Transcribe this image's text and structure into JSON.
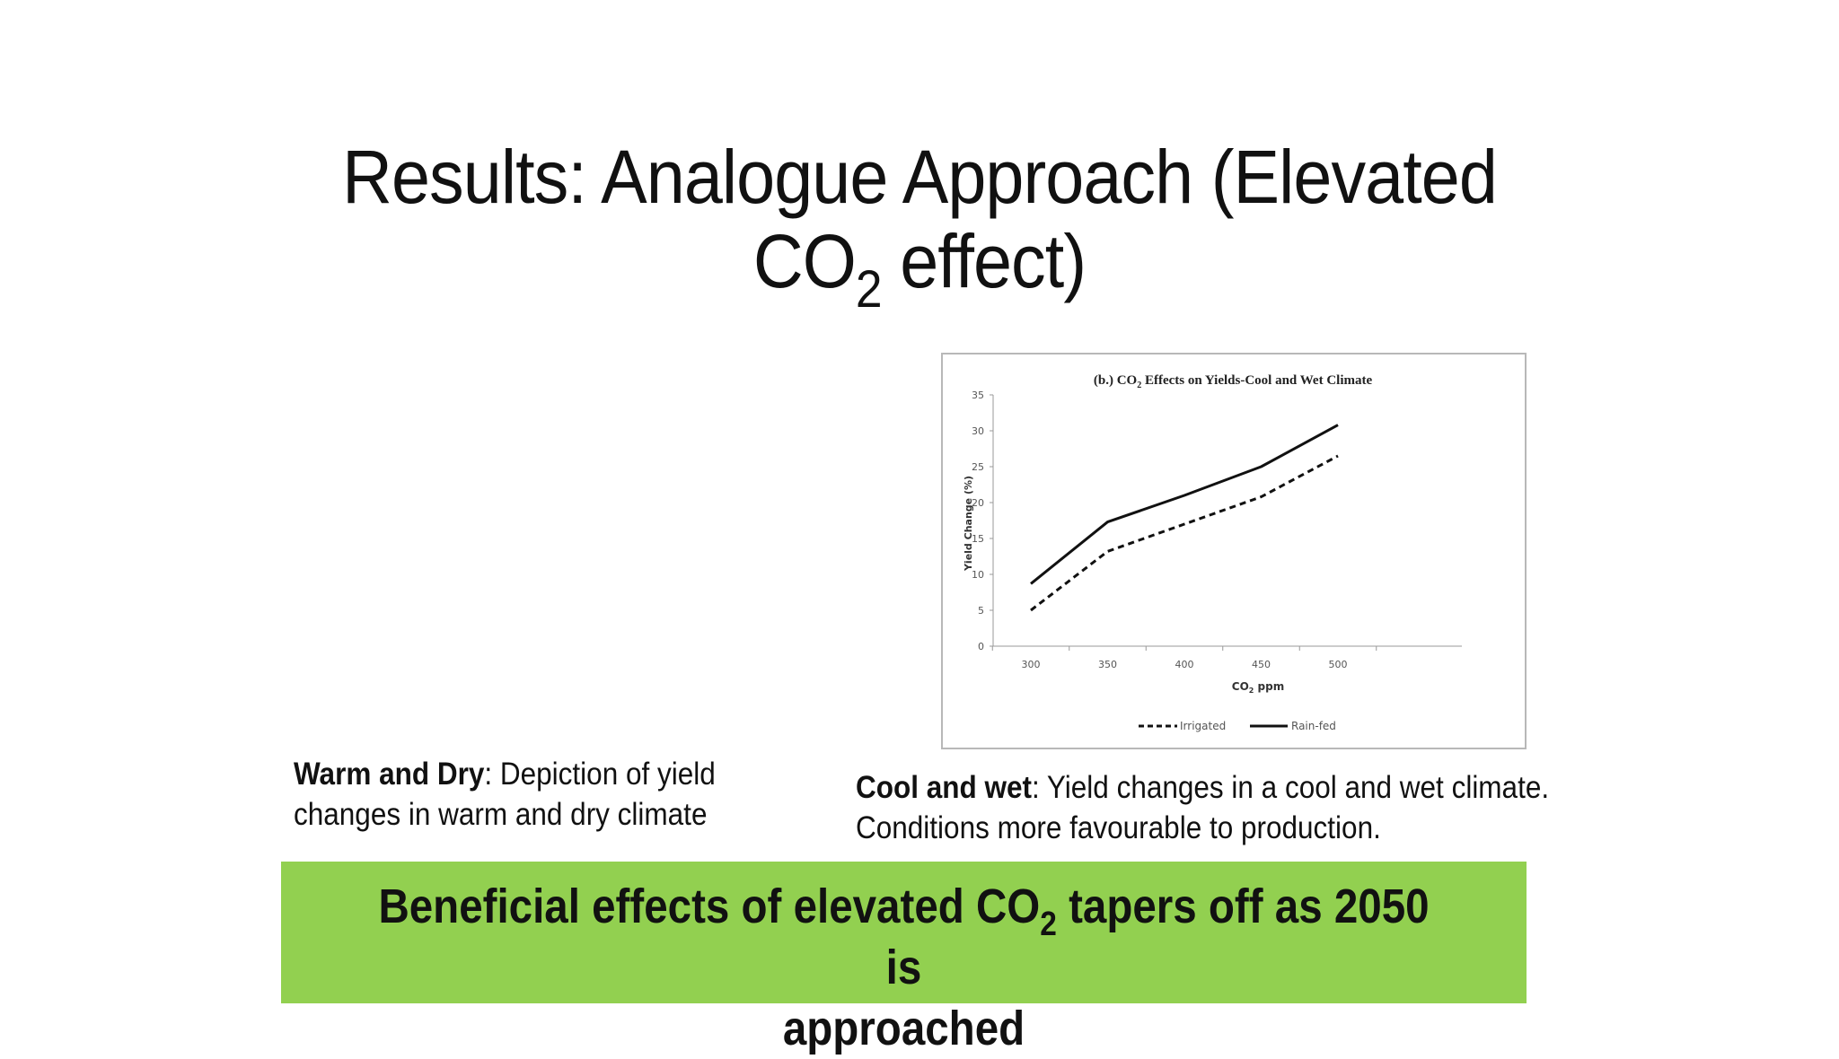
{
  "slide": {
    "title_line1": "Results: Analogue Approach (Elevated",
    "title_line2_pre": "CO",
    "title_line2_sub": "2",
    "title_line2_post": " effect)"
  },
  "captions": {
    "left": {
      "bold": "Warm and Dry",
      "rest_line1": ": Depiction of yield",
      "line2": "changes in warm and dry climate"
    },
    "right": {
      "bold": "Cool and wet",
      "rest_line1": ": Yield changes in a cool and wet climate.",
      "line2": "Conditions more favourable to production."
    }
  },
  "banner": {
    "line1_pre": "Beneficial effects of elevated CO",
    "line1_sub": "2",
    "line1_post": " tapers off as 2050 is",
    "line2": "approached",
    "color": "#92d050"
  },
  "chart_data": {
    "type": "line",
    "title_pre": "(b.) CO",
    "title_sub": "2",
    "title_post": " Effects on Yields-Cool and Wet Climate",
    "xlabel_pre": "CO",
    "xlabel_sub": "2",
    "xlabel_post": " ppm",
    "ylabel": "Yield Change (%)",
    "x": [
      300,
      350,
      400,
      450,
      500
    ],
    "x_ticks": [
      "300",
      "350",
      "400",
      "450",
      "500"
    ],
    "y_ticks": [
      0,
      5,
      10,
      15,
      20,
      25,
      30,
      35
    ],
    "ylim": [
      0,
      35
    ],
    "series": [
      {
        "name": "Irrigated",
        "values": [
          5,
          13.2,
          17,
          20.8,
          26.5
        ],
        "style": "dashed"
      },
      {
        "name": "Rain-fed",
        "values": [
          8.7,
          17.3,
          21,
          25,
          30.8
        ],
        "style": "solid"
      }
    ],
    "legend_position": "bottom",
    "grid": false
  }
}
